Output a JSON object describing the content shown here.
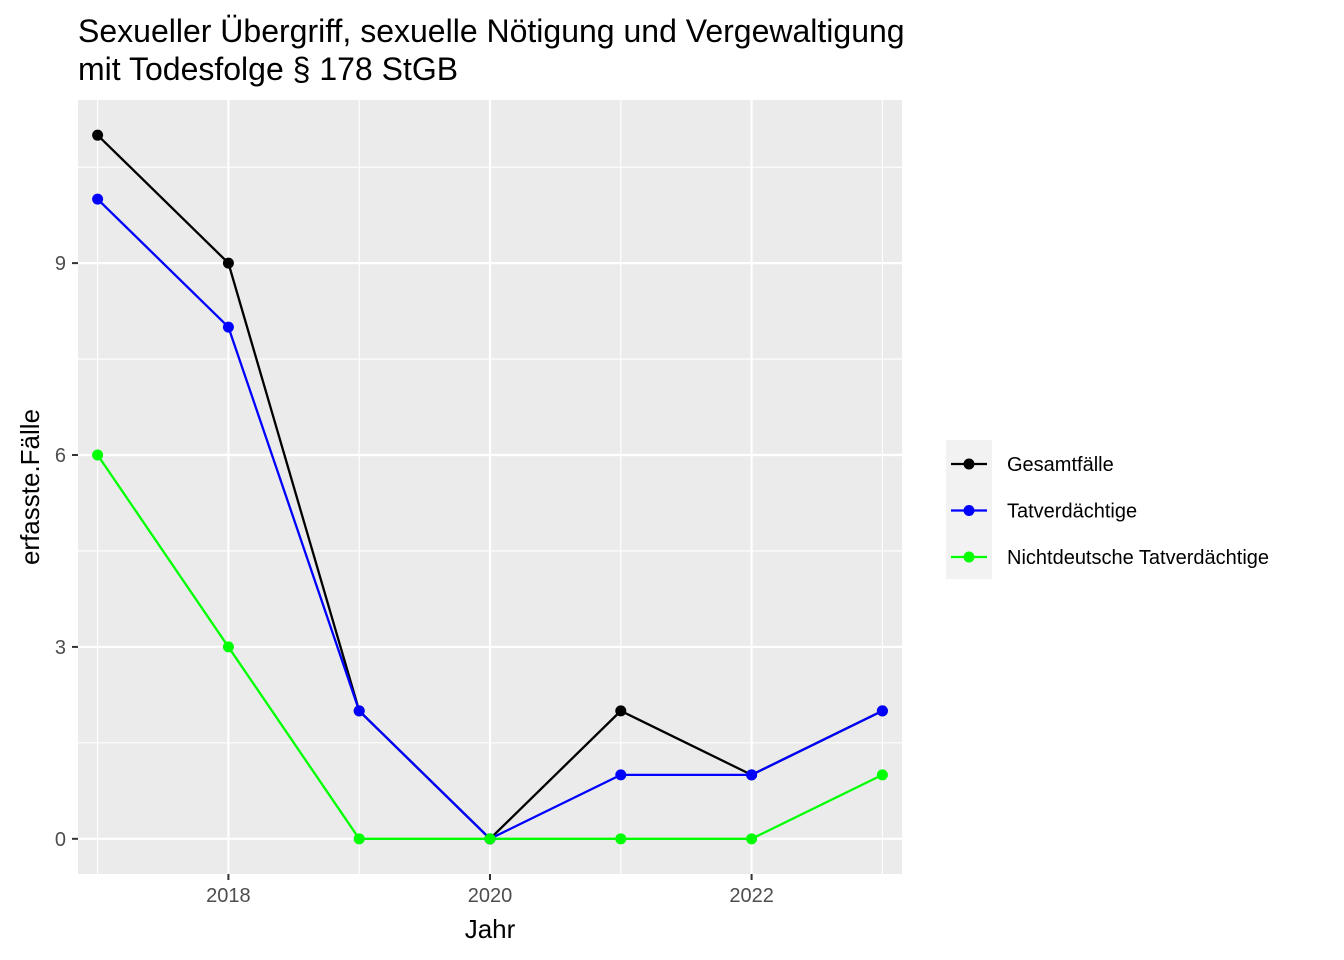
{
  "chart_data": {
    "type": "line",
    "title_lines": [
      "Sexueller Übergriff, sexuelle Nötigung und Vergewaltigung",
      "mit Todesfolge § 178 StGB"
    ],
    "xlabel": "Jahr",
    "ylabel": "erfasste.Fälle",
    "x": [
      2017,
      2018,
      2019,
      2020,
      2021,
      2022,
      2023
    ],
    "xlim": [
      2016.85,
      2023.15
    ],
    "ylim": [
      -0.55,
      11.55
    ],
    "x_ticks": [
      2018,
      2020,
      2022
    ],
    "x_tick_labels": [
      "2018",
      "2020",
      "2022"
    ],
    "x_minor": [
      2017,
      2019,
      2021,
      2023
    ],
    "y_ticks": [
      0,
      3,
      6,
      9
    ],
    "y_tick_labels": [
      "0",
      "3",
      "6",
      "9"
    ],
    "y_minor": [
      1.5,
      4.5,
      7.5,
      10.5
    ],
    "grid": true,
    "legend_position": "right",
    "series": [
      {
        "name": "Gesamtfälle",
        "color": "#000000",
        "values": [
          11,
          9,
          2,
          0,
          2,
          1,
          2
        ]
      },
      {
        "name": "Tatverdächtige",
        "color": "#0000ff",
        "values": [
          10,
          8,
          2,
          0,
          1,
          1,
          2
        ]
      },
      {
        "name": "Nichtdeutsche Tatverdächtige",
        "color": "#00ff00",
        "values": [
          6,
          3,
          0,
          0,
          0,
          0,
          1
        ]
      }
    ]
  }
}
